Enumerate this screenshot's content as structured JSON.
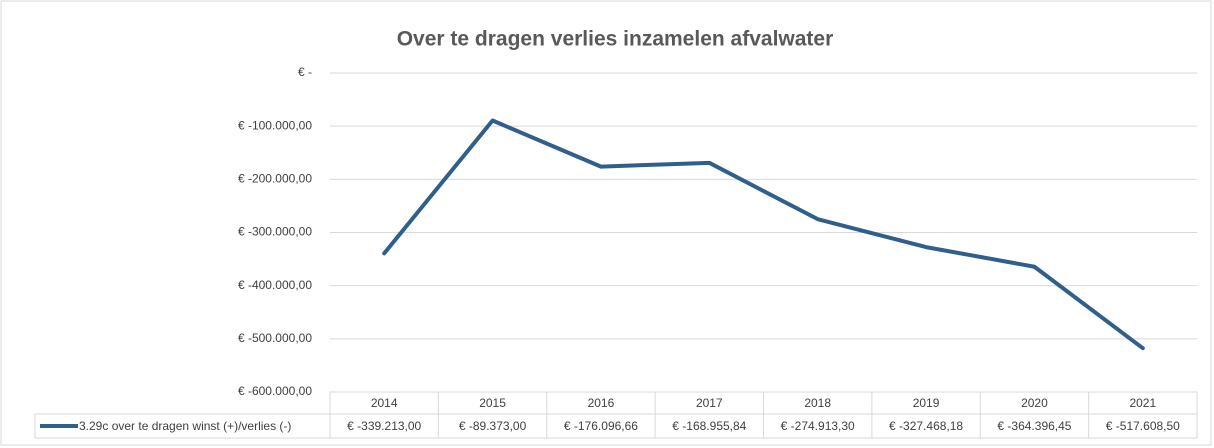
{
  "chart_data": {
    "type": "line",
    "title": "Over te dragen verlies inzamelen afvalwater",
    "categories": [
      "2014",
      "2015",
      "2016",
      "2017",
      "2018",
      "2019",
      "2020",
      "2021"
    ],
    "series": [
      {
        "name": "3.29c over te dragen winst (+)/verlies (-)",
        "color": "#2f5f8a",
        "values": [
          -339213.0,
          -89373.0,
          -176096.66,
          -168955.84,
          -274913.3,
          -327468.18,
          -364396.45,
          -517608.5
        ],
        "value_labels": [
          "€ -339.213,00",
          "€ -89.373,00",
          "€ -176.096,66",
          "€ -168.955,84",
          "€ -274.913,30",
          "€ -327.468,18",
          "€ -364.396,45",
          "€ -517.608,50"
        ]
      }
    ],
    "ylim": [
      -600000,
      0
    ],
    "yticks": [
      {
        "value": 0,
        "label": "€ -"
      },
      {
        "value": -100000,
        "label": "€ -100.000,00"
      },
      {
        "value": -200000,
        "label": "€ -200.000,00"
      },
      {
        "value": -300000,
        "label": "€ -300.000,00"
      },
      {
        "value": -400000,
        "label": "€ -400.000,00"
      },
      {
        "value": -500000,
        "label": "€ -500.000,00"
      },
      {
        "value": -600000,
        "label": "€ -600.000,00"
      }
    ],
    "grid": true
  }
}
